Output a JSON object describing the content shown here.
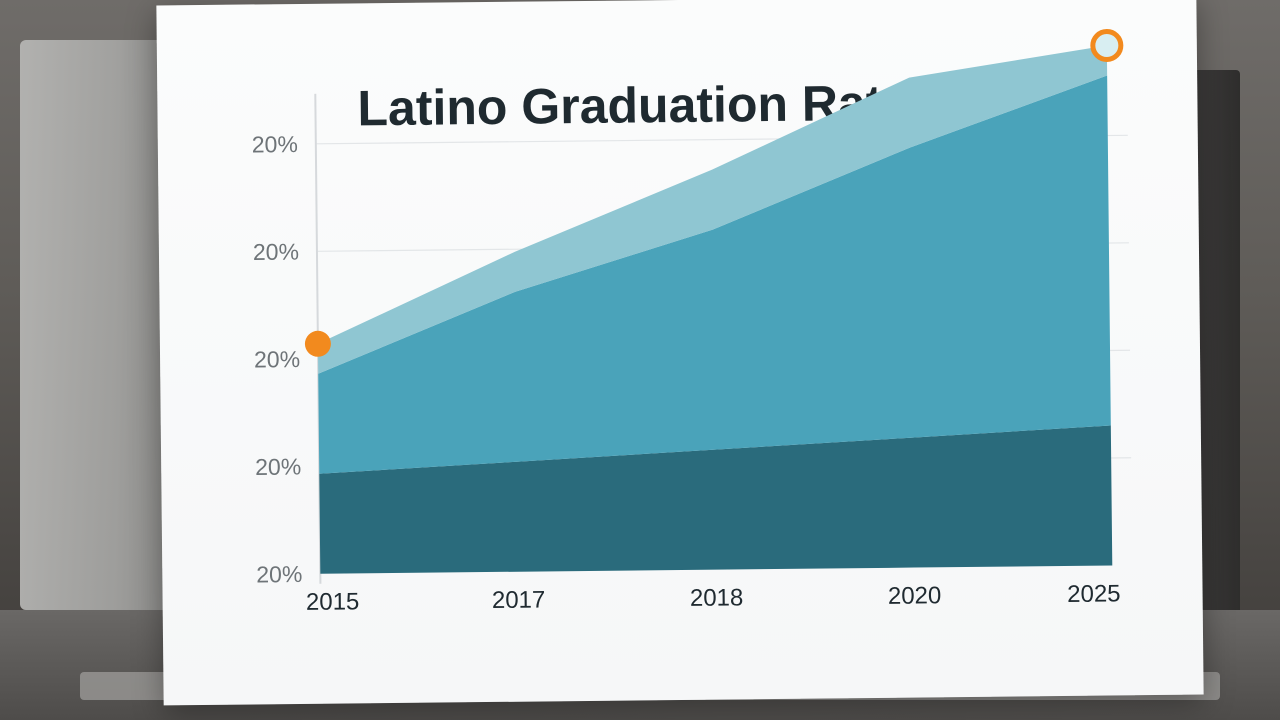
{
  "chart_data": {
    "type": "area",
    "title": "Latino Graduation Rates",
    "categories": [
      "2015",
      "2017",
      "2018",
      "2020",
      "2025"
    ],
    "y_tick_labels": [
      "20%",
      "20%",
      "20%",
      "20%",
      "20%"
    ],
    "series": [
      {
        "values": [
          1.0,
          1.1,
          1.2,
          1.3,
          1.4
        ]
      },
      {
        "values": [
          1.0,
          1.7,
          2.2,
          2.9,
          3.5
        ]
      },
      {
        "values": [
          0.3,
          0.4,
          0.6,
          0.7,
          0.3
        ]
      }
    ],
    "ylim": [
      0,
      4.3
    ],
    "grid": true,
    "colors": {
      "bottom_band": "#2a6b7c",
      "middle_band": "#4aa3ba",
      "top_band": "#8fc6d2",
      "marker": "#f28a1e"
    }
  }
}
